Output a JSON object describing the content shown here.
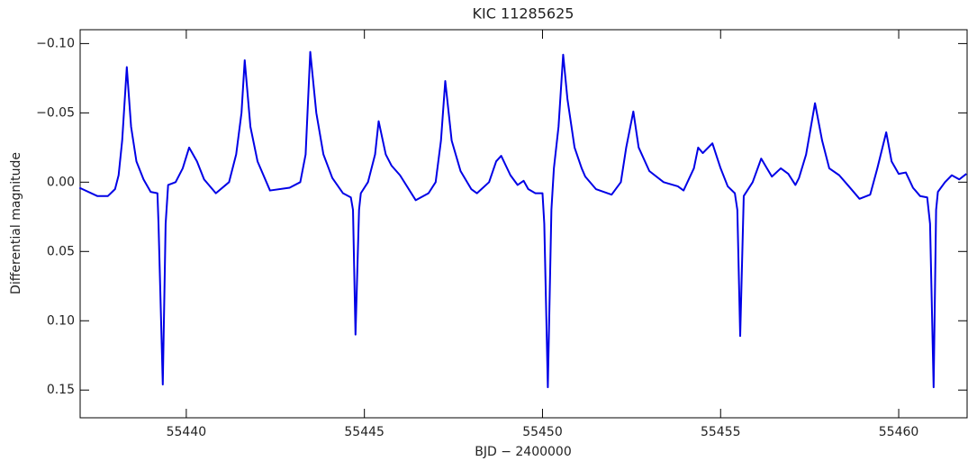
{
  "chart_data": {
    "type": "line",
    "title": "KIC 11285625",
    "xlabel": "BJD − 2400000",
    "ylabel": "Differential magnitude",
    "x": [
      55437.0,
      55437.5,
      55437.8,
      55438.0,
      55438.1,
      55438.2,
      55438.33,
      55438.45,
      55438.6,
      55438.8,
      55439.0,
      55439.19,
      55439.22,
      55439.34,
      55439.42,
      55439.49,
      55439.7,
      55439.9,
      55440.08,
      55440.3,
      55440.5,
      55440.83,
      55441.2,
      55441.4,
      55441.55,
      55441.64,
      55441.8,
      55442.0,
      55442.35,
      55442.9,
      55443.2,
      55443.35,
      55443.48,
      55443.65,
      55443.85,
      55444.1,
      55444.4,
      55444.62,
      55444.68,
      55444.75,
      55444.85,
      55444.9,
      55445.1,
      55445.3,
      55445.4,
      55445.6,
      55445.76,
      55446.0,
      55446.44,
      55446.8,
      55447.0,
      55447.15,
      55447.27,
      55447.45,
      55447.7,
      55448.0,
      55448.16,
      55448.5,
      55448.7,
      55448.84,
      55449.1,
      55449.3,
      55449.47,
      55449.6,
      55449.8,
      55450.0,
      55450.05,
      55450.15,
      55450.25,
      55450.32,
      55450.45,
      55450.58,
      55450.7,
      55450.9,
      55451.1,
      55451.2,
      55451.5,
      55451.94,
      55452.2,
      55452.35,
      55452.55,
      55452.7,
      55453.0,
      55453.4,
      55453.8,
      55453.96,
      55454.25,
      55454.37,
      55454.5,
      55454.77,
      55455.0,
      55455.2,
      55455.4,
      55455.47,
      55455.55,
      55455.65,
      55455.75,
      55455.9,
      55456.14,
      55456.3,
      55456.44,
      55456.69,
      55456.9,
      55457.1,
      55457.2,
      55457.4,
      55457.65,
      55457.85,
      55458.05,
      55458.33,
      55458.6,
      55458.9,
      55459.2,
      55459.4,
      55459.65,
      55459.8,
      55460.0,
      55460.2,
      55460.4,
      55460.6,
      55460.8,
      55460.88,
      55460.98,
      55461.05,
      55461.1,
      55461.3,
      55461.49,
      55461.7,
      55461.9
    ],
    "series": [
      {
        "color": "#0000e6",
        "values": [
          0.004,
          0.01,
          0.01,
          0.005,
          -0.005,
          -0.03,
          -0.083,
          -0.04,
          -0.015,
          -0.002,
          0.007,
          0.008,
          0.03,
          0.146,
          0.03,
          0.002,
          0.0,
          -0.01,
          -0.025,
          -0.015,
          -0.002,
          0.008,
          0.0,
          -0.02,
          -0.05,
          -0.088,
          -0.04,
          -0.015,
          0.006,
          0.004,
          0.0,
          -0.02,
          -0.094,
          -0.05,
          -0.02,
          -0.003,
          0.008,
          0.011,
          0.02,
          0.11,
          0.02,
          0.008,
          0.0,
          -0.02,
          -0.044,
          -0.02,
          -0.012,
          -0.005,
          0.013,
          0.008,
          0.0,
          -0.03,
          -0.073,
          -0.03,
          -0.008,
          0.005,
          0.008,
          0.0,
          -0.015,
          -0.019,
          -0.005,
          0.002,
          -0.001,
          0.005,
          0.008,
          0.008,
          0.03,
          0.148,
          0.02,
          -0.01,
          -0.04,
          -0.092,
          -0.06,
          -0.025,
          -0.01,
          -0.004,
          0.005,
          0.009,
          0.0,
          -0.025,
          -0.051,
          -0.025,
          -0.008,
          0.0,
          0.003,
          0.006,
          -0.01,
          -0.025,
          -0.021,
          -0.028,
          -0.01,
          0.003,
          0.008,
          0.02,
          0.111,
          0.01,
          0.006,
          0.0,
          -0.017,
          -0.01,
          -0.004,
          -0.01,
          -0.006,
          0.002,
          -0.003,
          -0.02,
          -0.057,
          -0.03,
          -0.01,
          -0.005,
          0.003,
          0.012,
          0.009,
          -0.01,
          -0.036,
          -0.015,
          -0.006,
          -0.007,
          0.004,
          0.01,
          0.011,
          0.03,
          0.148,
          0.02,
          0.007,
          0.0,
          -0.005,
          -0.002,
          -0.006
        ]
      }
    ],
    "xlim": [
      55437.02,
      55461.92
    ],
    "xticks": [
      55440,
      55445,
      55450,
      55455,
      55460
    ],
    "ylim": [
      -0.11,
      0.17
    ],
    "y_inverted": true,
    "yticks": [
      {
        "value": -0.1,
        "label": "−0.10"
      },
      {
        "value": -0.05,
        "label": "−0.05"
      },
      {
        "value": 0,
        "label": "0.00"
      },
      {
        "value": 0.05,
        "label": "0.05"
      },
      {
        "value": 0.1,
        "label": "0.10"
      },
      {
        "value": 0.15,
        "label": "0.15"
      }
    ]
  }
}
